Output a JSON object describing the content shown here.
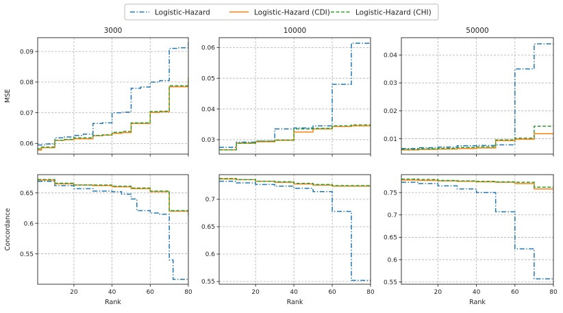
{
  "chart_data": {
    "type": "line",
    "legend": {
      "placement": "top-center",
      "entries": [
        {
          "name": "Logistic-Hazard",
          "color": "#1f77b4",
          "style": "dashdot"
        },
        {
          "name": "Logistic-Hazard (CDI)",
          "color": "#ff7f0e",
          "style": "solid"
        },
        {
          "name": "Logistic-Hazard (CHI)",
          "color": "#2ca02c",
          "style": "dashed"
        }
      ]
    },
    "xlabel": "Rank",
    "xlim": [
      1,
      80
    ],
    "xticks": [
      20,
      40,
      60,
      80
    ],
    "row_labels": [
      "MSE",
      "Concordance"
    ],
    "columns": [
      "3000",
      "10000",
      "50000"
    ],
    "panels": [
      {
        "title": "3000",
        "ylabel": "MSE",
        "ylim": [
          0.0565,
          0.0945
        ],
        "yticks": [
          0.06,
          0.07,
          0.08,
          0.09
        ],
        "series": [
          {
            "name": "Logistic-Hazard",
            "points": [
              [
                1,
                0.0595
              ],
              [
                5,
                0.0598
              ],
              [
                10,
                0.0618
              ],
              [
                15,
                0.0621
              ],
              [
                20,
                0.0626
              ],
              [
                25,
                0.063
              ],
              [
                30,
                0.0665
              ],
              [
                35,
                0.0667
              ],
              [
                40,
                0.07
              ],
              [
                45,
                0.0702
              ],
              [
                50,
                0.078
              ],
              [
                55,
                0.0784
              ],
              [
                60,
                0.08
              ],
              [
                65,
                0.0805
              ],
              [
                70,
                0.091
              ],
              [
                75,
                0.0912
              ],
              [
                80,
                0.093
              ]
            ]
          },
          {
            "name": "Logistic-Hazard (CDI)",
            "points": [
              [
                1,
                0.0578
              ],
              [
                3,
                0.0586
              ],
              [
                10,
                0.061
              ],
              [
                15,
                0.0612
              ],
              [
                20,
                0.0615
              ],
              [
                30,
                0.0625
              ],
              [
                35,
                0.0627
              ],
              [
                40,
                0.0633
              ],
              [
                45,
                0.0635
              ],
              [
                50,
                0.0665
              ],
              [
                60,
                0.0701
              ],
              [
                65,
                0.0703
              ],
              [
                70,
                0.0785
              ],
              [
                80,
                0.081
              ]
            ]
          },
          {
            "name": "Logistic-Hazard (CHI)",
            "points": [
              [
                1,
                0.0582
              ],
              [
                3,
                0.0588
              ],
              [
                10,
                0.061
              ],
              [
                15,
                0.0613
              ],
              [
                20,
                0.0618
              ],
              [
                30,
                0.0626
              ],
              [
                35,
                0.0628
              ],
              [
                40,
                0.0636
              ],
              [
                45,
                0.0639
              ],
              [
                50,
                0.0667
              ],
              [
                60,
                0.0704
              ],
              [
                65,
                0.0705
              ],
              [
                70,
                0.0788
              ],
              [
                80,
                0.0815
              ]
            ]
          }
        ]
      },
      {
        "title": "10000",
        "ylabel": "",
        "ylim": [
          0.0253,
          0.0632
        ],
        "yticks": [
          0.03,
          0.04,
          0.05,
          0.06
        ],
        "series": [
          {
            "name": "Logistic-Hazard",
            "points": [
              [
                1,
                0.0275
              ],
              [
                10,
                0.0292
              ],
              [
                20,
                0.0295
              ],
              [
                30,
                0.0335
              ],
              [
                40,
                0.0338
              ],
              [
                50,
                0.0345
              ],
              [
                60,
                0.048
              ],
              [
                70,
                0.0614
              ],
              [
                80,
                0.0614
              ]
            ]
          },
          {
            "name": "Logistic-Hazard (CDI)",
            "points": [
              [
                1,
                0.0267
              ],
              [
                10,
                0.0288
              ],
              [
                20,
                0.0293
              ],
              [
                30,
                0.0298
              ],
              [
                40,
                0.0325
              ],
              [
                50,
                0.0335
              ],
              [
                60,
                0.0343
              ],
              [
                70,
                0.0345
              ],
              [
                80,
                0.0345
              ]
            ]
          },
          {
            "name": "Logistic-Hazard (CHI)",
            "points": [
              [
                1,
                0.0267
              ],
              [
                10,
                0.0289
              ],
              [
                20,
                0.0295
              ],
              [
                30,
                0.0299
              ],
              [
                40,
                0.0335
              ],
              [
                50,
                0.0337
              ],
              [
                60,
                0.0345
              ],
              [
                70,
                0.0348
              ],
              [
                80,
                0.0348
              ]
            ]
          }
        ]
      },
      {
        "title": "50000",
        "ylabel": "",
        "ylim": [
          0.0045,
          0.0462
        ],
        "yticks": [
          0.01,
          0.02,
          0.03,
          0.04
        ],
        "series": [
          {
            "name": "Logistic-Hazard",
            "points": [
              [
                1,
                0.0065
              ],
              [
                10,
                0.0068
              ],
              [
                20,
                0.007
              ],
              [
                30,
                0.0075
              ],
              [
                40,
                0.0076
              ],
              [
                50,
                0.0078
              ],
              [
                60,
                0.035
              ],
              [
                70,
                0.044
              ],
              [
                80,
                0.044
              ]
            ]
          },
          {
            "name": "Logistic-Hazard (CDI)",
            "points": [
              [
                1,
                0.006
              ],
              [
                10,
                0.0062
              ],
              [
                20,
                0.0063
              ],
              [
                30,
                0.0065
              ],
              [
                40,
                0.0067
              ],
              [
                50,
                0.0093
              ],
              [
                60,
                0.0098
              ],
              [
                70,
                0.0118
              ],
              [
                80,
                0.0118
              ]
            ]
          },
          {
            "name": "Logistic-Hazard (CHI)",
            "points": [
              [
                1,
                0.0062
              ],
              [
                10,
                0.0064
              ],
              [
                20,
                0.0066
              ],
              [
                30,
                0.0069
              ],
              [
                40,
                0.0071
              ],
              [
                50,
                0.0096
              ],
              [
                60,
                0.0102
              ],
              [
                70,
                0.0145
              ],
              [
                80,
                0.0145
              ]
            ]
          }
        ]
      },
      {
        "title": "",
        "ylabel": "Concordance",
        "ylim": [
          0.5,
          0.68
        ],
        "yticks": [
          0.55,
          0.6,
          0.65
        ],
        "series": [
          {
            "name": "Logistic-Hazard",
            "points": [
              [
                1,
                0.669
              ],
              [
                10,
                0.662
              ],
              [
                20,
                0.657
              ],
              [
                30,
                0.653
              ],
              [
                40,
                0.652
              ],
              [
                45,
                0.648
              ],
              [
                50,
                0.64
              ],
              [
                53,
                0.621
              ],
              [
                60,
                0.617
              ],
              [
                65,
                0.615
              ],
              [
                70,
                0.54
              ],
              [
                72,
                0.508
              ],
              [
                80,
                0.508
              ]
            ]
          },
          {
            "name": "Logistic-Hazard (CDI)",
            "points": [
              [
                1,
                0.671
              ],
              [
                10,
                0.665
              ],
              [
                20,
                0.663
              ],
              [
                30,
                0.662
              ],
              [
                40,
                0.66
              ],
              [
                50,
                0.657
              ],
              [
                60,
                0.652
              ],
              [
                70,
                0.62
              ],
              [
                80,
                0.615
              ]
            ]
          },
          {
            "name": "Logistic-Hazard (CHI)",
            "points": [
              [
                1,
                0.672
              ],
              [
                10,
                0.666
              ],
              [
                20,
                0.663
              ],
              [
                30,
                0.663
              ],
              [
                40,
                0.661
              ],
              [
                50,
                0.658
              ],
              [
                60,
                0.653
              ],
              [
                70,
                0.621
              ],
              [
                80,
                0.613
              ]
            ]
          }
        ]
      },
      {
        "title": "",
        "ylabel": "",
        "ylim": [
          0.545,
          0.745
        ],
        "yticks": [
          0.55,
          0.6,
          0.65,
          0.7
        ],
        "series": [
          {
            "name": "Logistic-Hazard",
            "points": [
              [
                1,
                0.733
              ],
              [
                10,
                0.73
              ],
              [
                20,
                0.727
              ],
              [
                30,
                0.724
              ],
              [
                40,
                0.72
              ],
              [
                50,
                0.714
              ],
              [
                60,
                0.678
              ],
              [
                70,
                0.552
              ],
              [
                80,
                0.552
              ]
            ]
          },
          {
            "name": "Logistic-Hazard (CDI)",
            "points": [
              [
                1,
                0.737
              ],
              [
                10,
                0.736
              ],
              [
                20,
                0.733
              ],
              [
                30,
                0.731
              ],
              [
                40,
                0.728
              ],
              [
                50,
                0.726
              ],
              [
                60,
                0.724
              ],
              [
                70,
                0.724
              ],
              [
                80,
                0.724
              ]
            ]
          },
          {
            "name": "Logistic-Hazard (CHI)",
            "points": [
              [
                1,
                0.738
              ],
              [
                10,
                0.736
              ],
              [
                20,
                0.733
              ],
              [
                30,
                0.732
              ],
              [
                40,
                0.729
              ],
              [
                50,
                0.727
              ],
              [
                60,
                0.725
              ],
              [
                70,
                0.725
              ],
              [
                80,
                0.725
              ]
            ]
          }
        ]
      },
      {
        "title": "",
        "ylabel": "",
        "ylim": [
          0.545,
          0.79
        ],
        "yticks": [
          0.55,
          0.6,
          0.65,
          0.7,
          0.75
        ],
        "series": [
          {
            "name": "Logistic-Hazard",
            "points": [
              [
                1,
                0.773
              ],
              [
                10,
                0.77
              ],
              [
                20,
                0.765
              ],
              [
                30,
                0.758
              ],
              [
                40,
                0.75
              ],
              [
                50,
                0.707
              ],
              [
                60,
                0.624
              ],
              [
                70,
                0.557
              ],
              [
                80,
                0.557
              ]
            ]
          },
          {
            "name": "Logistic-Hazard (CDI)",
            "points": [
              [
                1,
                0.778
              ],
              [
                10,
                0.777
              ],
              [
                20,
                0.776
              ],
              [
                30,
                0.775
              ],
              [
                40,
                0.774
              ],
              [
                50,
                0.773
              ],
              [
                60,
                0.77
              ],
              [
                70,
                0.758
              ],
              [
                80,
                0.758
              ]
            ]
          },
          {
            "name": "Logistic-Hazard (CHI)",
            "points": [
              [
                1,
                0.78
              ],
              [
                10,
                0.779
              ],
              [
                20,
                0.777
              ],
              [
                30,
                0.776
              ],
              [
                40,
                0.775
              ],
              [
                50,
                0.774
              ],
              [
                60,
                0.773
              ],
              [
                70,
                0.762
              ],
              [
                80,
                0.762
              ]
            ]
          }
        ]
      }
    ]
  }
}
